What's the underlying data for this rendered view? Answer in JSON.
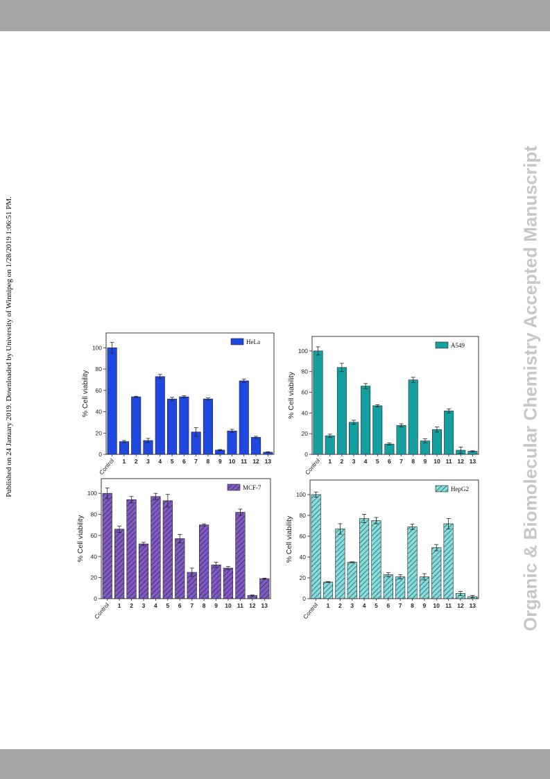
{
  "page": {
    "side_note": "Published on 24 January 2019. Downloaded by University of Winnipeg on 1/28/2019 1:06:51 PM.",
    "journal_watermark": "Organic & Biomolecular Chemistry Accepted Manuscript"
  },
  "chart_data": [
    {
      "type": "bar",
      "categories": [
        "Control",
        "1",
        "2",
        "3",
        "4",
        "5",
        "6",
        "7",
        "8",
        "9",
        "10",
        "11",
        "12",
        "13"
      ],
      "series": [
        {
          "name": "HeLa",
          "values": [
            100,
            12,
            54,
            13,
            73,
            52,
            54,
            21,
            52,
            4,
            22,
            69,
            16,
            2
          ],
          "errors": [
            5,
            1,
            0.5,
            2,
            2,
            1.5,
            1,
            4,
            1,
            0.5,
            1.5,
            1.5,
            1,
            0.5
          ]
        }
      ],
      "ylabel": "% Cell viability",
      "ylim": [
        0,
        110
      ],
      "yticks": [
        0,
        20,
        40,
        60,
        80,
        100
      ],
      "color": "#1f48e0",
      "pattern": "solid",
      "legend": "top-right"
    },
    {
      "type": "bar",
      "categories": [
        "Control",
        "1",
        "2",
        "3",
        "4",
        "5",
        "6",
        "7",
        "8",
        "9",
        "10",
        "11",
        "12",
        "13"
      ],
      "series": [
        {
          "name": "A549",
          "values": [
            100,
            18,
            84,
            31,
            66,
            47,
            10,
            28,
            72,
            13,
            24,
            42,
            4,
            3
          ],
          "errors": [
            4,
            1.5,
            4,
            2,
            2.5,
            1,
            1,
            1.5,
            2.5,
            2,
            2.5,
            2,
            3,
            0.5
          ]
        }
      ],
      "ylabel": "% Cell viability",
      "ylim": [
        0,
        110
      ],
      "yticks": [
        0,
        20,
        40,
        60,
        80,
        100
      ],
      "color": "#14a0a0",
      "pattern": "solid",
      "legend": "top-right"
    },
    {
      "type": "bar",
      "categories": [
        "Control",
        "1",
        "2",
        "3",
        "4",
        "5",
        "6",
        "7",
        "8",
        "9",
        "10",
        "11",
        "12",
        "13"
      ],
      "series": [
        {
          "name": "MCF-7",
          "values": [
            100,
            66,
            94,
            52,
            97,
            93,
            57,
            25,
            70,
            32,
            29,
            82,
            3,
            19
          ],
          "errors": [
            5,
            3,
            3,
            1.5,
            3,
            6,
            4,
            4,
            1,
            2.5,
            1.5,
            3,
            0.5,
            0.5
          ]
        }
      ],
      "ylabel": "% Cell viability",
      "ylim": [
        0,
        110
      ],
      "yticks": [
        0,
        20,
        40,
        60,
        80,
        100
      ],
      "color": "#6a3fb0",
      "pattern": "hatch",
      "legend": "top-right"
    },
    {
      "type": "bar",
      "categories": [
        "Control",
        "1",
        "2",
        "3",
        "4",
        "5",
        "6",
        "7",
        "8",
        "9",
        "10",
        "11",
        "12",
        "13"
      ],
      "series": [
        {
          "name": "HepG2",
          "values": [
            100,
            16,
            67,
            35,
            77,
            75,
            23,
            21,
            69,
            21,
            49,
            72,
            5,
            2
          ],
          "errors": [
            2.5,
            0.5,
            5,
            0.5,
            4,
            3,
            2,
            2,
            2.5,
            3,
            3,
            5,
            2,
            1
          ]
        }
      ],
      "ylabel": "% Cell viability",
      "ylim": [
        0,
        110
      ],
      "yticks": [
        0,
        20,
        40,
        60,
        80,
        100
      ],
      "color": "#30b8b8",
      "pattern": "hatch",
      "legend": "top-right"
    }
  ]
}
